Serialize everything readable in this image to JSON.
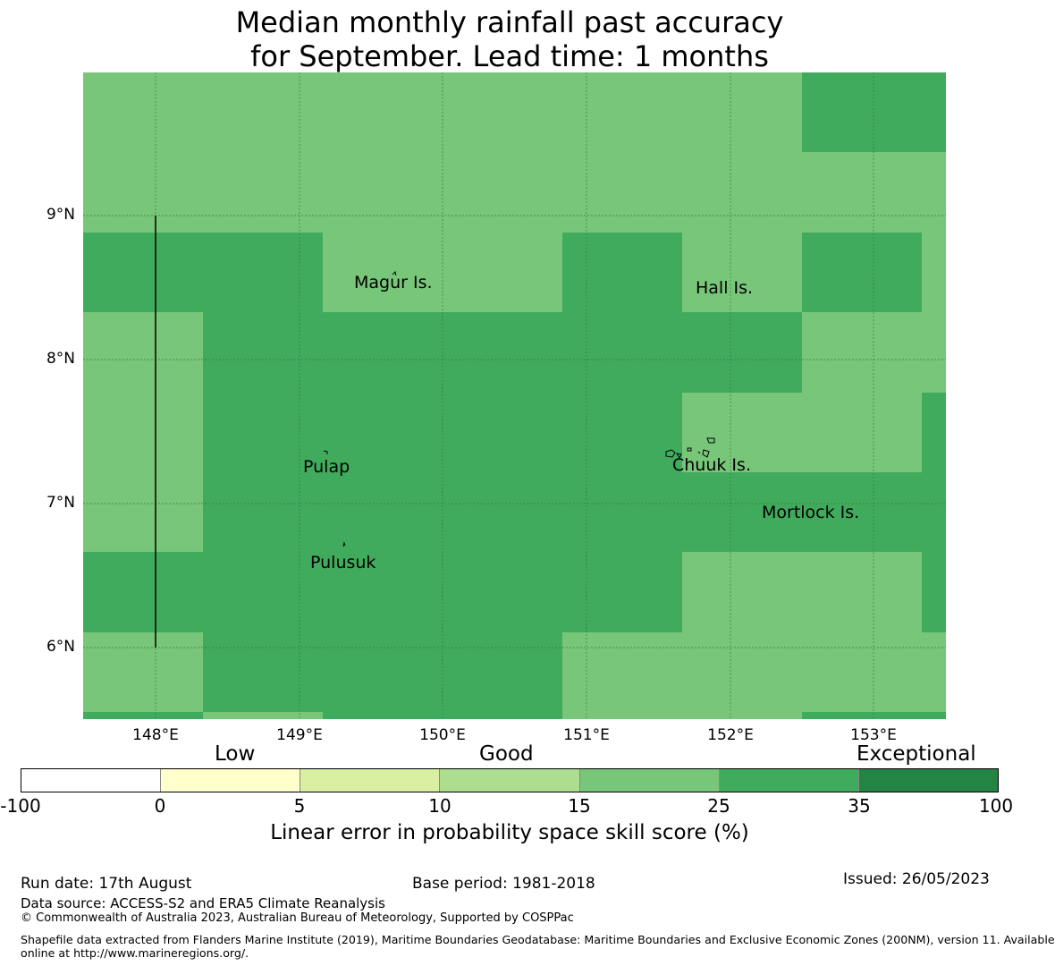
{
  "title": {
    "line1": "Median monthly rainfall past accuracy",
    "line2": "for September. Lead time: 1 months"
  },
  "map": {
    "lat_labels": [
      "9°N",
      "8°N",
      "7°N",
      "6°N"
    ],
    "lon_labels": [
      "148°E",
      "149°E",
      "150°E",
      "151°E",
      "152°E",
      "153°E"
    ],
    "places": [
      "Magur Is.",
      "Hall Is.",
      "Pulap",
      "Chuuk Is.",
      "Mortlock Is.",
      "Pulusuk"
    ],
    "colors": {
      "band_15_25": "#78c679",
      "band_25_35": "#41ab5d"
    }
  },
  "legend": {
    "categories": [
      "Low",
      "Good",
      "Exceptional"
    ],
    "ticks": [
      "-100",
      "0",
      "5",
      "10",
      "15",
      "25",
      "35",
      "100"
    ],
    "colors": [
      "#ffffff",
      "#ffffcc",
      "#d9f0a3",
      "#addd8e",
      "#78c679",
      "#41ab5d",
      "#238443"
    ],
    "label": "Linear error in probability space skill score (%)"
  },
  "footer": {
    "run_date": "Run date: 17th August",
    "base_period": "Base period: 1981-2018",
    "issued": "Issued: 26/05/2023",
    "data_source": "Data source: ACCESS-S2 and ERA5 Climate Reanalysis",
    "copyright": "© Commonwealth of Australia 2023, Australian Bureau of Meteorology, Supported by COSPPac",
    "shapefile_line1": "Shapefile data extracted from Flanders Marine Institute (2019), Maritime Boundaries Geodatabase: Maritime Boundaries and Exclusive Economic Zones (200NM), version 11. Available",
    "shapefile_line2": "online at http://www.marineregions.org/."
  }
}
